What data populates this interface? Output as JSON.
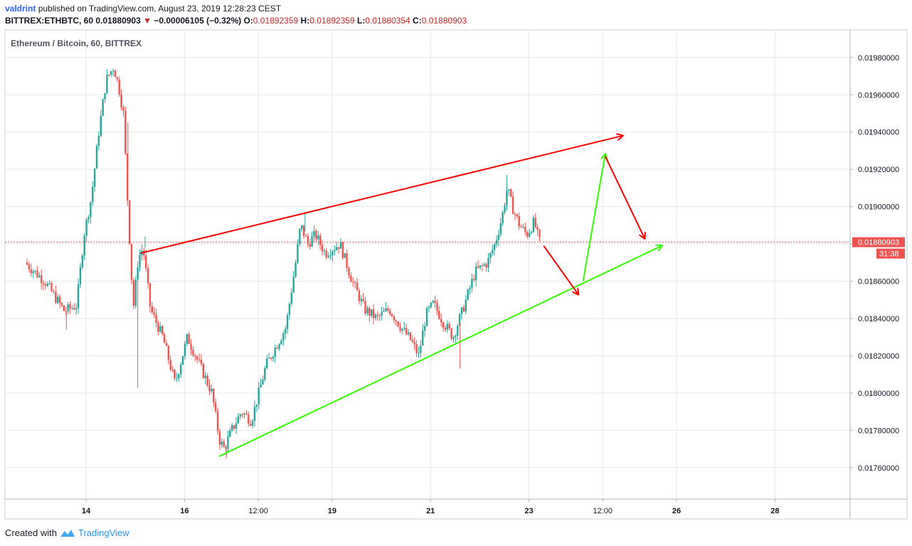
{
  "header": {
    "publisher": "valdrint",
    "published_text": "published on TradingView.com, August 23, 2019 12:28:23 CEST",
    "ticker": "BITTREX:ETHBTC, 60",
    "last": "0.01880903",
    "change": "−0.00006105 (−0.32%)",
    "open_label": "O:",
    "open": "0.01892359",
    "high_label": "H:",
    "high": "0.01892359",
    "low_label": "L:",
    "low": "0.01880354",
    "close_label": "C:",
    "close": "0.01880903"
  },
  "footer": {
    "created_with": "Created with",
    "brand": "TradingView"
  },
  "colors": {
    "up": "#26a69a",
    "down": "#ef5350",
    "trend_red": "#ff0000",
    "trend_green": "#33ff00",
    "price_tag": "#ef5350",
    "grid": "#e1ecf2"
  },
  "chart_data": {
    "type": "candlestick",
    "title": "Ethereum / Bitcoin, 60, BITTREX",
    "x_tick_labels": [
      "14",
      "16",
      "12:00",
      "19",
      "21",
      "23",
      "12:00",
      "26",
      "28"
    ],
    "y_tick_labels": [
      "0.01980000",
      "0.01960000",
      "0.01940000",
      "0.01920000",
      "0.01900000",
      "0.01880000",
      "0.01860000",
      "0.01840000",
      "0.01820000",
      "0.01800000",
      "0.01780000",
      "0.01760000"
    ],
    "ylim": [
      0.01744,
      0.01996
    ],
    "last_price": "0.01880903",
    "countdown": "31:38",
    "grid": true,
    "price_path": [
      [
        12.8,
        0.0187
      ],
      [
        13.2,
        0.0186
      ],
      [
        13.6,
        0.01844
      ],
      [
        13.85,
        0.01847
      ],
      [
        14.0,
        0.01885
      ],
      [
        14.15,
        0.01905
      ],
      [
        14.3,
        0.0194
      ],
      [
        14.45,
        0.01968
      ],
      [
        14.6,
        0.01975
      ],
      [
        14.7,
        0.01965
      ],
      [
        14.8,
        0.0195
      ],
      [
        14.9,
        0.01895
      ],
      [
        15.0,
        0.01845
      ],
      [
        15.1,
        0.01872
      ],
      [
        15.2,
        0.01878
      ],
      [
        15.35,
        0.01845
      ],
      [
        15.6,
        0.0183
      ],
      [
        15.85,
        0.01805
      ],
      [
        16.1,
        0.0183
      ],
      [
        16.35,
        0.01815
      ],
      [
        16.6,
        0.018
      ],
      [
        16.75,
        0.01775
      ],
      [
        16.85,
        0.0177
      ],
      [
        17.0,
        0.0178
      ],
      [
        17.2,
        0.0179
      ],
      [
        17.4,
        0.01785
      ],
      [
        17.55,
        0.018
      ],
      [
        17.7,
        0.01815
      ],
      [
        17.9,
        0.01825
      ],
      [
        18.1,
        0.01835
      ],
      [
        18.3,
        0.0187
      ],
      [
        18.4,
        0.0189
      ],
      [
        18.55,
        0.0188
      ],
      [
        18.7,
        0.01885
      ],
      [
        18.9,
        0.01875
      ],
      [
        19.2,
        0.0188
      ],
      [
        19.45,
        0.0186
      ],
      [
        19.7,
        0.01845
      ],
      [
        19.95,
        0.0184
      ],
      [
        20.2,
        0.01845
      ],
      [
        20.45,
        0.01835
      ],
      [
        20.65,
        0.01828
      ],
      [
        20.8,
        0.0182
      ],
      [
        20.95,
        0.01842
      ],
      [
        21.1,
        0.01848
      ],
      [
        21.3,
        0.01838
      ],
      [
        21.5,
        0.0183
      ],
      [
        21.7,
        0.01845
      ],
      [
        21.95,
        0.01865
      ],
      [
        22.2,
        0.0187
      ],
      [
        22.35,
        0.0188
      ],
      [
        22.5,
        0.01895
      ],
      [
        22.6,
        0.0191
      ],
      [
        22.7,
        0.019
      ],
      [
        22.85,
        0.0189
      ],
      [
        23.0,
        0.01885
      ],
      [
        23.15,
        0.01892
      ],
      [
        23.25,
        0.01881
      ]
    ],
    "spikes": [
      {
        "day": 13.6,
        "low": 0.01834
      },
      {
        "day": 14.85,
        "low": 0.01945
      },
      {
        "day": 15.05,
        "low": 0.01803
      },
      {
        "day": 15.2,
        "high": 0.01884
      },
      {
        "day": 16.85,
        "low": 0.01765
      },
      {
        "day": 18.45,
        "high": 0.01897
      },
      {
        "day": 21.6,
        "low": 0.01813
      },
      {
        "day": 22.55,
        "high": 0.01917
      }
    ],
    "trendlines": [
      {
        "color": "red",
        "from": [
          15.1,
          0.01875
        ],
        "to": [
          24.9,
          0.01938
        ],
        "arrow": true
      },
      {
        "color": "green",
        "from": [
          16.7,
          0.01766
        ],
        "to": [
          25.7,
          0.01879
        ],
        "arrow": true
      }
    ],
    "projection_arrows": [
      {
        "color": "red",
        "from": [
          23.3,
          0.01879
        ],
        "to": [
          24.0,
          0.01853
        ]
      },
      {
        "color": "green",
        "from": [
          24.1,
          0.0186
        ],
        "to": [
          24.55,
          0.01928
        ]
      },
      {
        "color": "red",
        "from": [
          24.55,
          0.01927
        ],
        "to": [
          25.35,
          0.01883
        ]
      }
    ]
  }
}
